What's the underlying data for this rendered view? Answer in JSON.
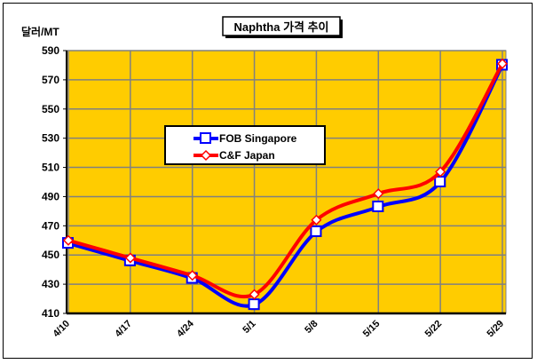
{
  "chart_data": {
    "type": "line",
    "title": "Naphtha 가격 추이",
    "ylabel": "달러/MT",
    "xlabel": "",
    "categories": [
      "4/10",
      "4/17",
      "4/24",
      "5/1",
      "5/8",
      "5/15",
      "5/22",
      "5/29"
    ],
    "ylim": [
      410,
      590
    ],
    "yticks": [
      410,
      430,
      450,
      470,
      490,
      510,
      530,
      550,
      570,
      590
    ],
    "grid": true,
    "legend_position": "center-left",
    "series": [
      {
        "name": "FOB Singapore",
        "color": "#0000FF",
        "marker": "square",
        "values": [
          458,
          446,
          434,
          416,
          466,
          483,
          500,
          580
        ]
      },
      {
        "name": "C&F Japan",
        "color": "#FF0000",
        "marker": "diamond",
        "values": [
          460,
          448,
          436,
          423,
          474,
          492,
          507,
          581
        ]
      }
    ],
    "colors": {
      "plot_bg": "#FFCC00",
      "grid": "#808080"
    }
  }
}
